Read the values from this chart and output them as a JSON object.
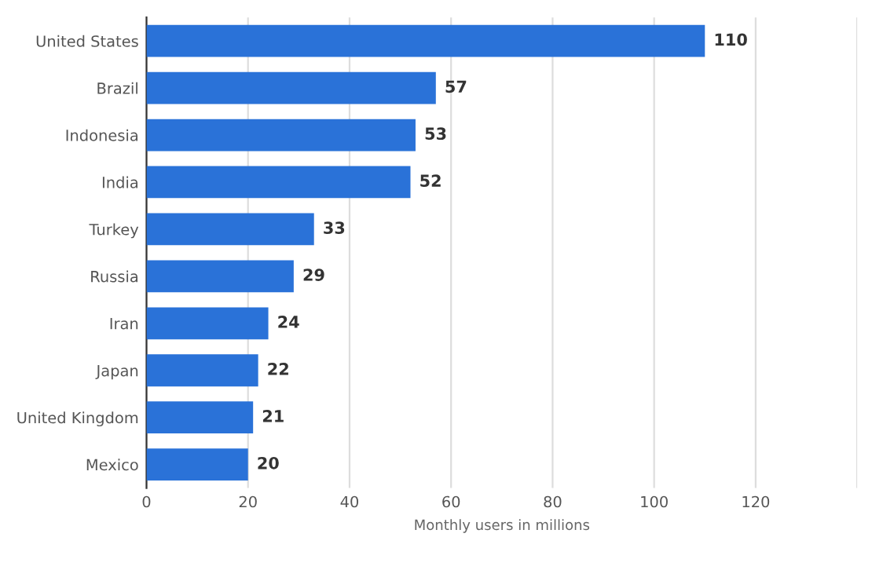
{
  "chart_data": {
    "type": "bar",
    "orientation": "horizontal",
    "xlabel": "Monthly users in millions",
    "categories": [
      "United States",
      "Brazil",
      "Indonesia",
      "India",
      "Turkey",
      "Russia",
      "Iran",
      "Japan",
      "United Kingdom",
      "Mexico"
    ],
    "values": [
      110,
      57,
      53,
      52,
      33,
      29,
      24,
      22,
      21,
      20
    ],
    "color": "#2a72d8",
    "data_labels": true,
    "xlim": [
      0,
      140
    ],
    "xticks": [
      0,
      20,
      40,
      60,
      80,
      100,
      120,
      {
        "value": 140,
        "label": null
      }
    ],
    "grid": "x",
    "legend": false
  }
}
